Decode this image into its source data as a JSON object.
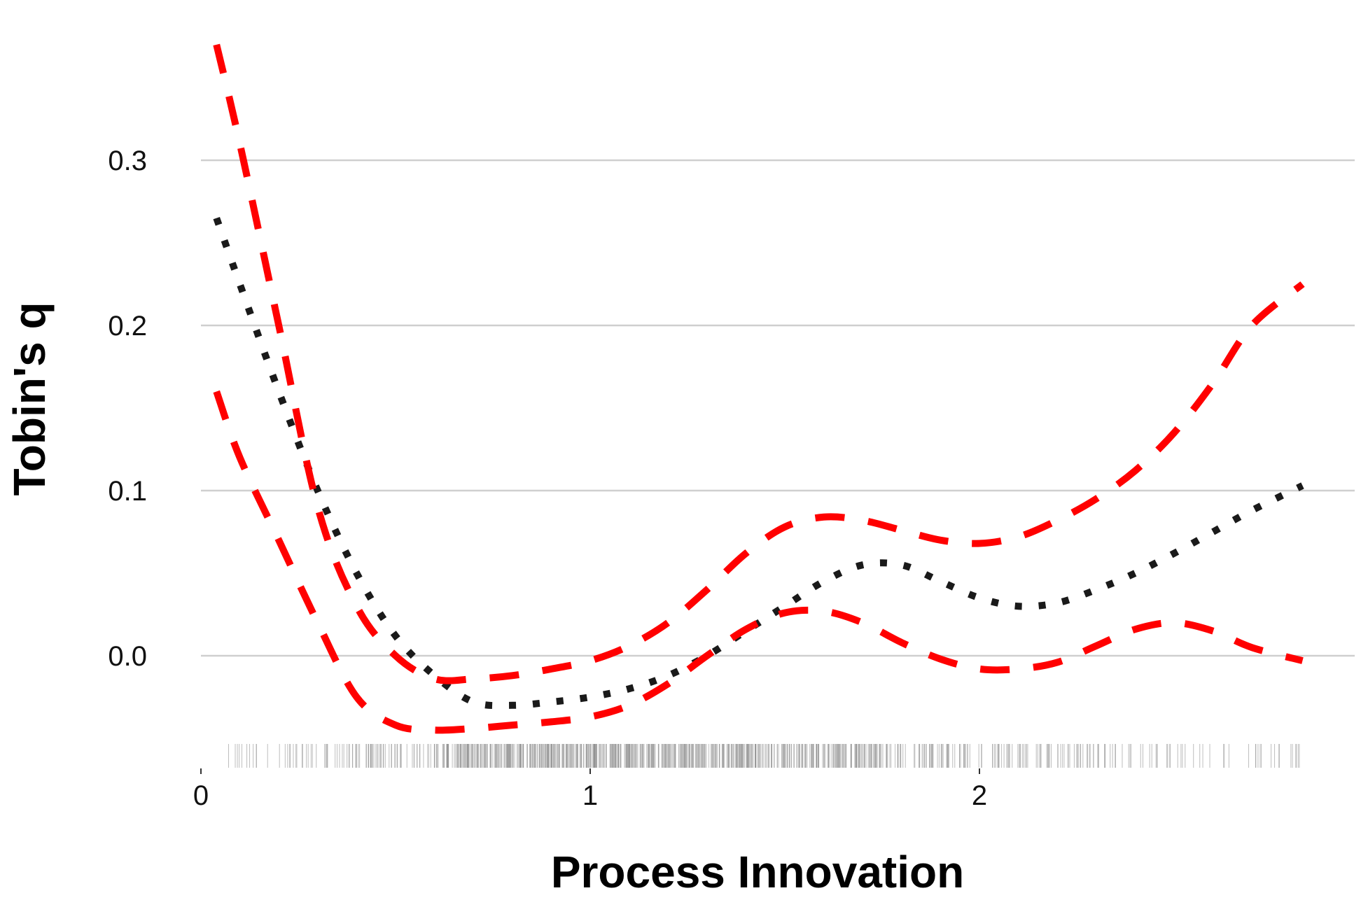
{
  "chart_data": {
    "type": "line",
    "xlabel": "Process Innovation",
    "ylabel": "Tobin's q",
    "xlim": [
      0,
      2.9
    ],
    "ylim": [
      -0.065,
      0.375
    ],
    "x_ticks": [
      0,
      1,
      2
    ],
    "x_tick_labels": [
      "0",
      "1",
      "2"
    ],
    "y_ticks": [
      0.0,
      0.1,
      0.2,
      0.3
    ],
    "y_tick_labels": [
      "0.0",
      "0.1",
      "0.2",
      "0.3"
    ],
    "grid": "horizontal",
    "legend": "none",
    "series": [
      {
        "style": "dotted",
        "color": "#1a1a1a",
        "x": [
          0.04,
          0.1,
          0.2,
          0.3,
          0.4,
          0.5,
          0.6,
          0.7,
          0.8,
          0.9,
          1.0,
          1.1,
          1.2,
          1.3,
          1.4,
          1.5,
          1.6,
          1.7,
          1.8,
          1.9,
          2.0,
          2.1,
          2.2,
          2.3,
          2.4,
          2.5,
          2.6,
          2.7,
          2.83
        ],
        "y": [
          0.265,
          0.225,
          0.16,
          0.1,
          0.05,
          0.012,
          -0.012,
          -0.028,
          -0.03,
          -0.028,
          -0.025,
          -0.02,
          -0.012,
          0.0,
          0.015,
          0.03,
          0.045,
          0.055,
          0.055,
          0.045,
          0.035,
          0.03,
          0.032,
          0.04,
          0.05,
          0.062,
          0.075,
          0.088,
          0.103
        ]
      },
      {
        "style": "dashed",
        "color": "#ff0000",
        "x": [
          0.04,
          0.1,
          0.2,
          0.3,
          0.4,
          0.5,
          0.6,
          0.7,
          0.8,
          0.9,
          1.0,
          1.1,
          1.2,
          1.3,
          1.4,
          1.5,
          1.6,
          1.7,
          1.8,
          1.9,
          2.0,
          2.1,
          2.2,
          2.3,
          2.4,
          2.5,
          2.6,
          2.7,
          2.83
        ],
        "y": [
          0.37,
          0.31,
          0.2,
          0.09,
          0.03,
          0.0,
          -0.014,
          -0.014,
          -0.012,
          -0.008,
          -0.003,
          0.006,
          0.02,
          0.04,
          0.062,
          0.078,
          0.084,
          0.082,
          0.076,
          0.07,
          0.068,
          0.072,
          0.082,
          0.095,
          0.112,
          0.135,
          0.165,
          0.2,
          0.225
        ]
      },
      {
        "style": "dashed",
        "color": "#ff0000",
        "x": [
          0.04,
          0.1,
          0.2,
          0.3,
          0.4,
          0.5,
          0.6,
          0.7,
          0.8,
          0.9,
          1.0,
          1.1,
          1.2,
          1.3,
          1.4,
          1.5,
          1.6,
          1.7,
          1.8,
          1.9,
          2.0,
          2.1,
          2.2,
          2.3,
          2.4,
          2.5,
          2.6,
          2.7,
          2.83
        ],
        "y": [
          0.16,
          0.12,
          0.07,
          0.02,
          -0.025,
          -0.042,
          -0.045,
          -0.044,
          -0.042,
          -0.04,
          -0.037,
          -0.03,
          -0.017,
          0.0,
          0.016,
          0.026,
          0.027,
          0.02,
          0.008,
          -0.002,
          -0.008,
          -0.008,
          -0.004,
          0.006,
          0.016,
          0.02,
          0.015,
          0.005,
          -0.003
        ]
      }
    ],
    "rug": {
      "color": "#888888",
      "x_min": 0.04,
      "x_max": 2.83,
      "density": [
        0.15,
        0.35,
        0.9,
        1.0,
        0.95,
        0.7,
        0.45,
        0.3,
        0.2,
        0.12
      ]
    }
  }
}
